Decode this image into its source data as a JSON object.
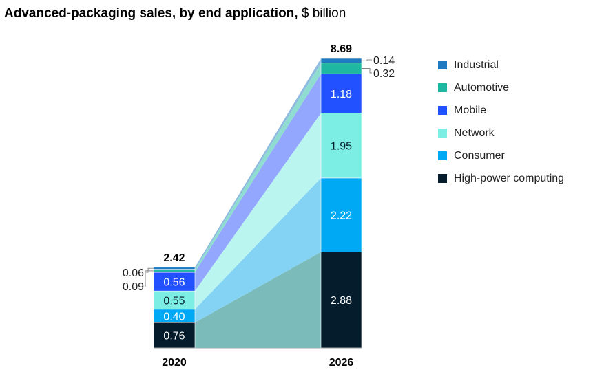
{
  "title": {
    "bold": "Advanced-packaging sales, by end application,",
    "unit": "$ billion"
  },
  "colors": {
    "high_power_computing": "#051c2c",
    "consumer": "#00a9f4",
    "network": "#7deee3",
    "mobile": "#2251ff",
    "automotive": "#1eb7a1",
    "industrial": "#1f7ac0"
  },
  "chart_data": {
    "type": "bar",
    "stacked": true,
    "title": "Advanced-packaging sales, by end application, $ billion",
    "categories": [
      "2020",
      "2026"
    ],
    "series": [
      {
        "name": "High-power computing",
        "key": "high_power_computing",
        "values": [
          0.76,
          2.88
        ],
        "labels": [
          "0.76",
          "2.88"
        ]
      },
      {
        "name": "Consumer",
        "key": "consumer",
        "values": [
          0.4,
          2.22
        ],
        "labels": [
          "0.40",
          "2.22"
        ]
      },
      {
        "name": "Network",
        "key": "network",
        "values": [
          0.55,
          1.95
        ],
        "labels": [
          "0.55",
          "1.95"
        ]
      },
      {
        "name": "Mobile",
        "key": "mobile",
        "values": [
          0.56,
          1.18
        ],
        "labels": [
          "0.56",
          "1.18"
        ]
      },
      {
        "name": "Automotive",
        "key": "automotive",
        "values": [
          0.09,
          0.32
        ],
        "labels": [
          "0.09",
          "0.32"
        ]
      },
      {
        "name": "Industrial",
        "key": "industrial",
        "values": [
          0.06,
          0.14
        ],
        "labels": [
          "0.06",
          "0.14"
        ]
      }
    ],
    "totals": [
      "2.42",
      "8.69"
    ],
    "legend_order": [
      "Industrial",
      "Automotive",
      "Mobile",
      "Network",
      "Consumer",
      "High-power computing"
    ],
    "legend_position": "right",
    "grid": false
  }
}
